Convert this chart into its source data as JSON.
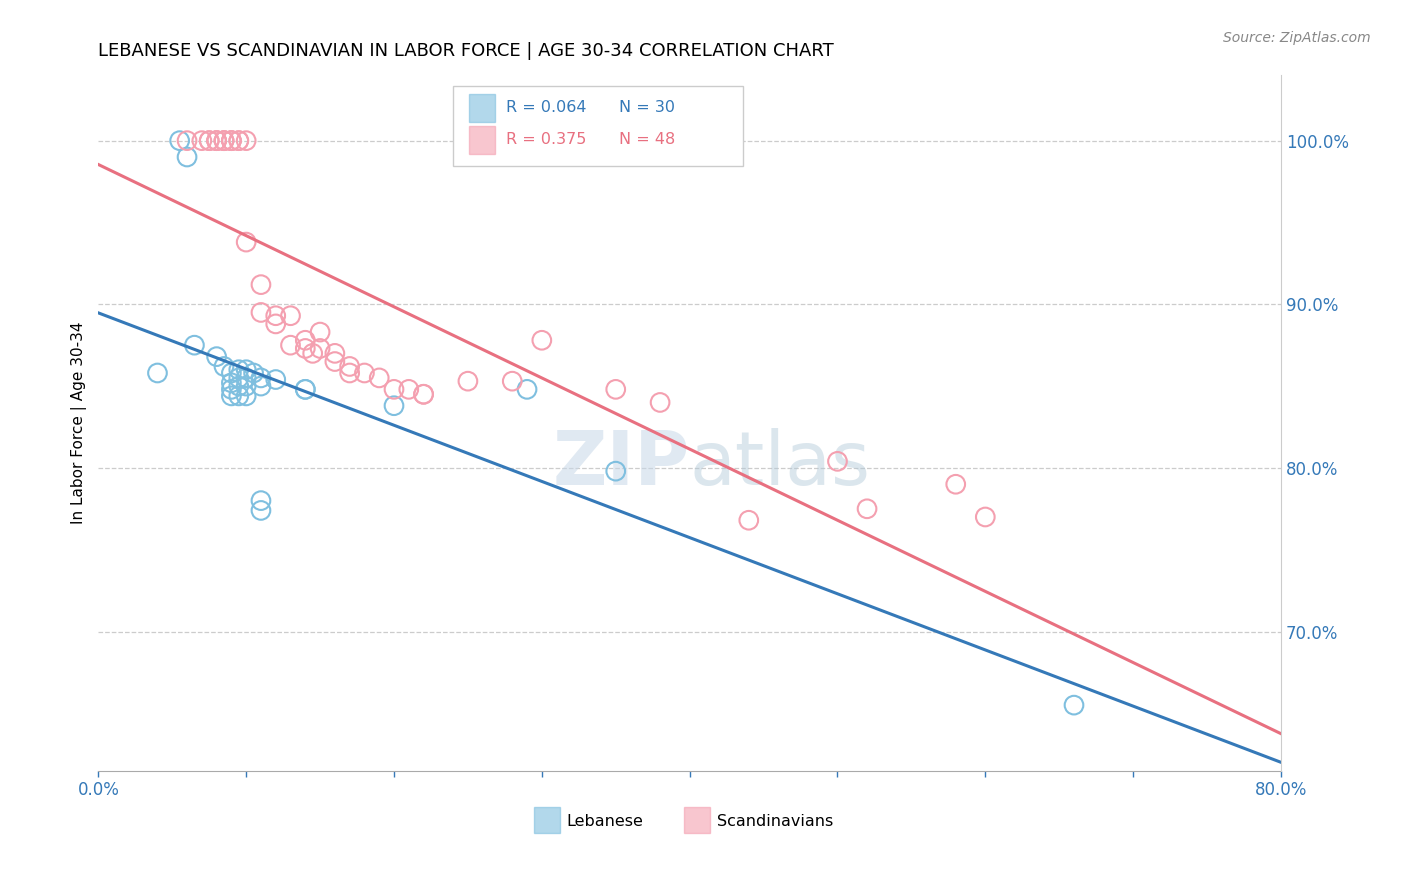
{
  "title": "LEBANESE VS SCANDINAVIAN IN LABOR FORCE | AGE 30-34 CORRELATION CHART",
  "source": "Source: ZipAtlas.com",
  "ylabel": "In Labor Force | Age 30-34",
  "ylabel_right_ticks": [
    "100.0%",
    "90.0%",
    "80.0%",
    "70.0%"
  ],
  "ylabel_right_vals": [
    1.0,
    0.9,
    0.8,
    0.7
  ],
  "xlim": [
    0.0,
    0.8
  ],
  "ylim": [
    0.615,
    1.04
  ],
  "legend_r_blue": "R = 0.064",
  "legend_n_blue": "N = 30",
  "legend_r_pink": "R = 0.375",
  "legend_n_pink": "N = 48",
  "blue_color": "#7fbfdf",
  "pink_color": "#f4a0b0",
  "blue_line_color": "#3579b8",
  "pink_line_color": "#e87080",
  "blue_scatter": [
    [
      0.04,
      0.858
    ],
    [
      0.055,
      1.0
    ],
    [
      0.06,
      0.99
    ],
    [
      0.065,
      0.875
    ],
    [
      0.08,
      0.868
    ],
    [
      0.085,
      0.862
    ],
    [
      0.09,
      0.858
    ],
    [
      0.09,
      0.852
    ],
    [
      0.09,
      0.848
    ],
    [
      0.09,
      0.844
    ],
    [
      0.095,
      0.86
    ],
    [
      0.095,
      0.855
    ],
    [
      0.095,
      0.85
    ],
    [
      0.095,
      0.844
    ],
    [
      0.1,
      0.86
    ],
    [
      0.1,
      0.855
    ],
    [
      0.1,
      0.85
    ],
    [
      0.1,
      0.844
    ],
    [
      0.105,
      0.858
    ],
    [
      0.11,
      0.855
    ],
    [
      0.11,
      0.85
    ],
    [
      0.11,
      0.78
    ],
    [
      0.11,
      0.774
    ],
    [
      0.12,
      0.854
    ],
    [
      0.14,
      0.848
    ],
    [
      0.14,
      0.848
    ],
    [
      0.2,
      0.838
    ],
    [
      0.29,
      0.848
    ],
    [
      0.35,
      0.798
    ],
    [
      0.66,
      0.655
    ]
  ],
  "pink_scatter": [
    [
      0.06,
      1.0
    ],
    [
      0.07,
      1.0
    ],
    [
      0.075,
      1.0
    ],
    [
      0.075,
      1.0
    ],
    [
      0.08,
      1.0
    ],
    [
      0.08,
      1.0
    ],
    [
      0.08,
      1.0
    ],
    [
      0.085,
      1.0
    ],
    [
      0.085,
      1.0
    ],
    [
      0.085,
      1.0
    ],
    [
      0.09,
      1.0
    ],
    [
      0.09,
      1.0
    ],
    [
      0.09,
      1.0
    ],
    [
      0.095,
      1.0
    ],
    [
      0.095,
      1.0
    ],
    [
      0.1,
      1.0
    ],
    [
      0.1,
      0.938
    ],
    [
      0.11,
      0.912
    ],
    [
      0.11,
      0.895
    ],
    [
      0.12,
      0.893
    ],
    [
      0.12,
      0.888
    ],
    [
      0.13,
      0.893
    ],
    [
      0.13,
      0.875
    ],
    [
      0.14,
      0.878
    ],
    [
      0.14,
      0.873
    ],
    [
      0.145,
      0.87
    ],
    [
      0.15,
      0.883
    ],
    [
      0.15,
      0.873
    ],
    [
      0.16,
      0.87
    ],
    [
      0.16,
      0.865
    ],
    [
      0.17,
      0.862
    ],
    [
      0.17,
      0.858
    ],
    [
      0.18,
      0.858
    ],
    [
      0.19,
      0.855
    ],
    [
      0.2,
      0.848
    ],
    [
      0.21,
      0.848
    ],
    [
      0.22,
      0.845
    ],
    [
      0.22,
      0.845
    ],
    [
      0.25,
      0.853
    ],
    [
      0.28,
      0.853
    ],
    [
      0.3,
      0.878
    ],
    [
      0.35,
      0.848
    ],
    [
      0.38,
      0.84
    ],
    [
      0.44,
      0.768
    ],
    [
      0.5,
      0.804
    ],
    [
      0.52,
      0.775
    ],
    [
      0.58,
      0.79
    ],
    [
      0.6,
      0.77
    ]
  ]
}
